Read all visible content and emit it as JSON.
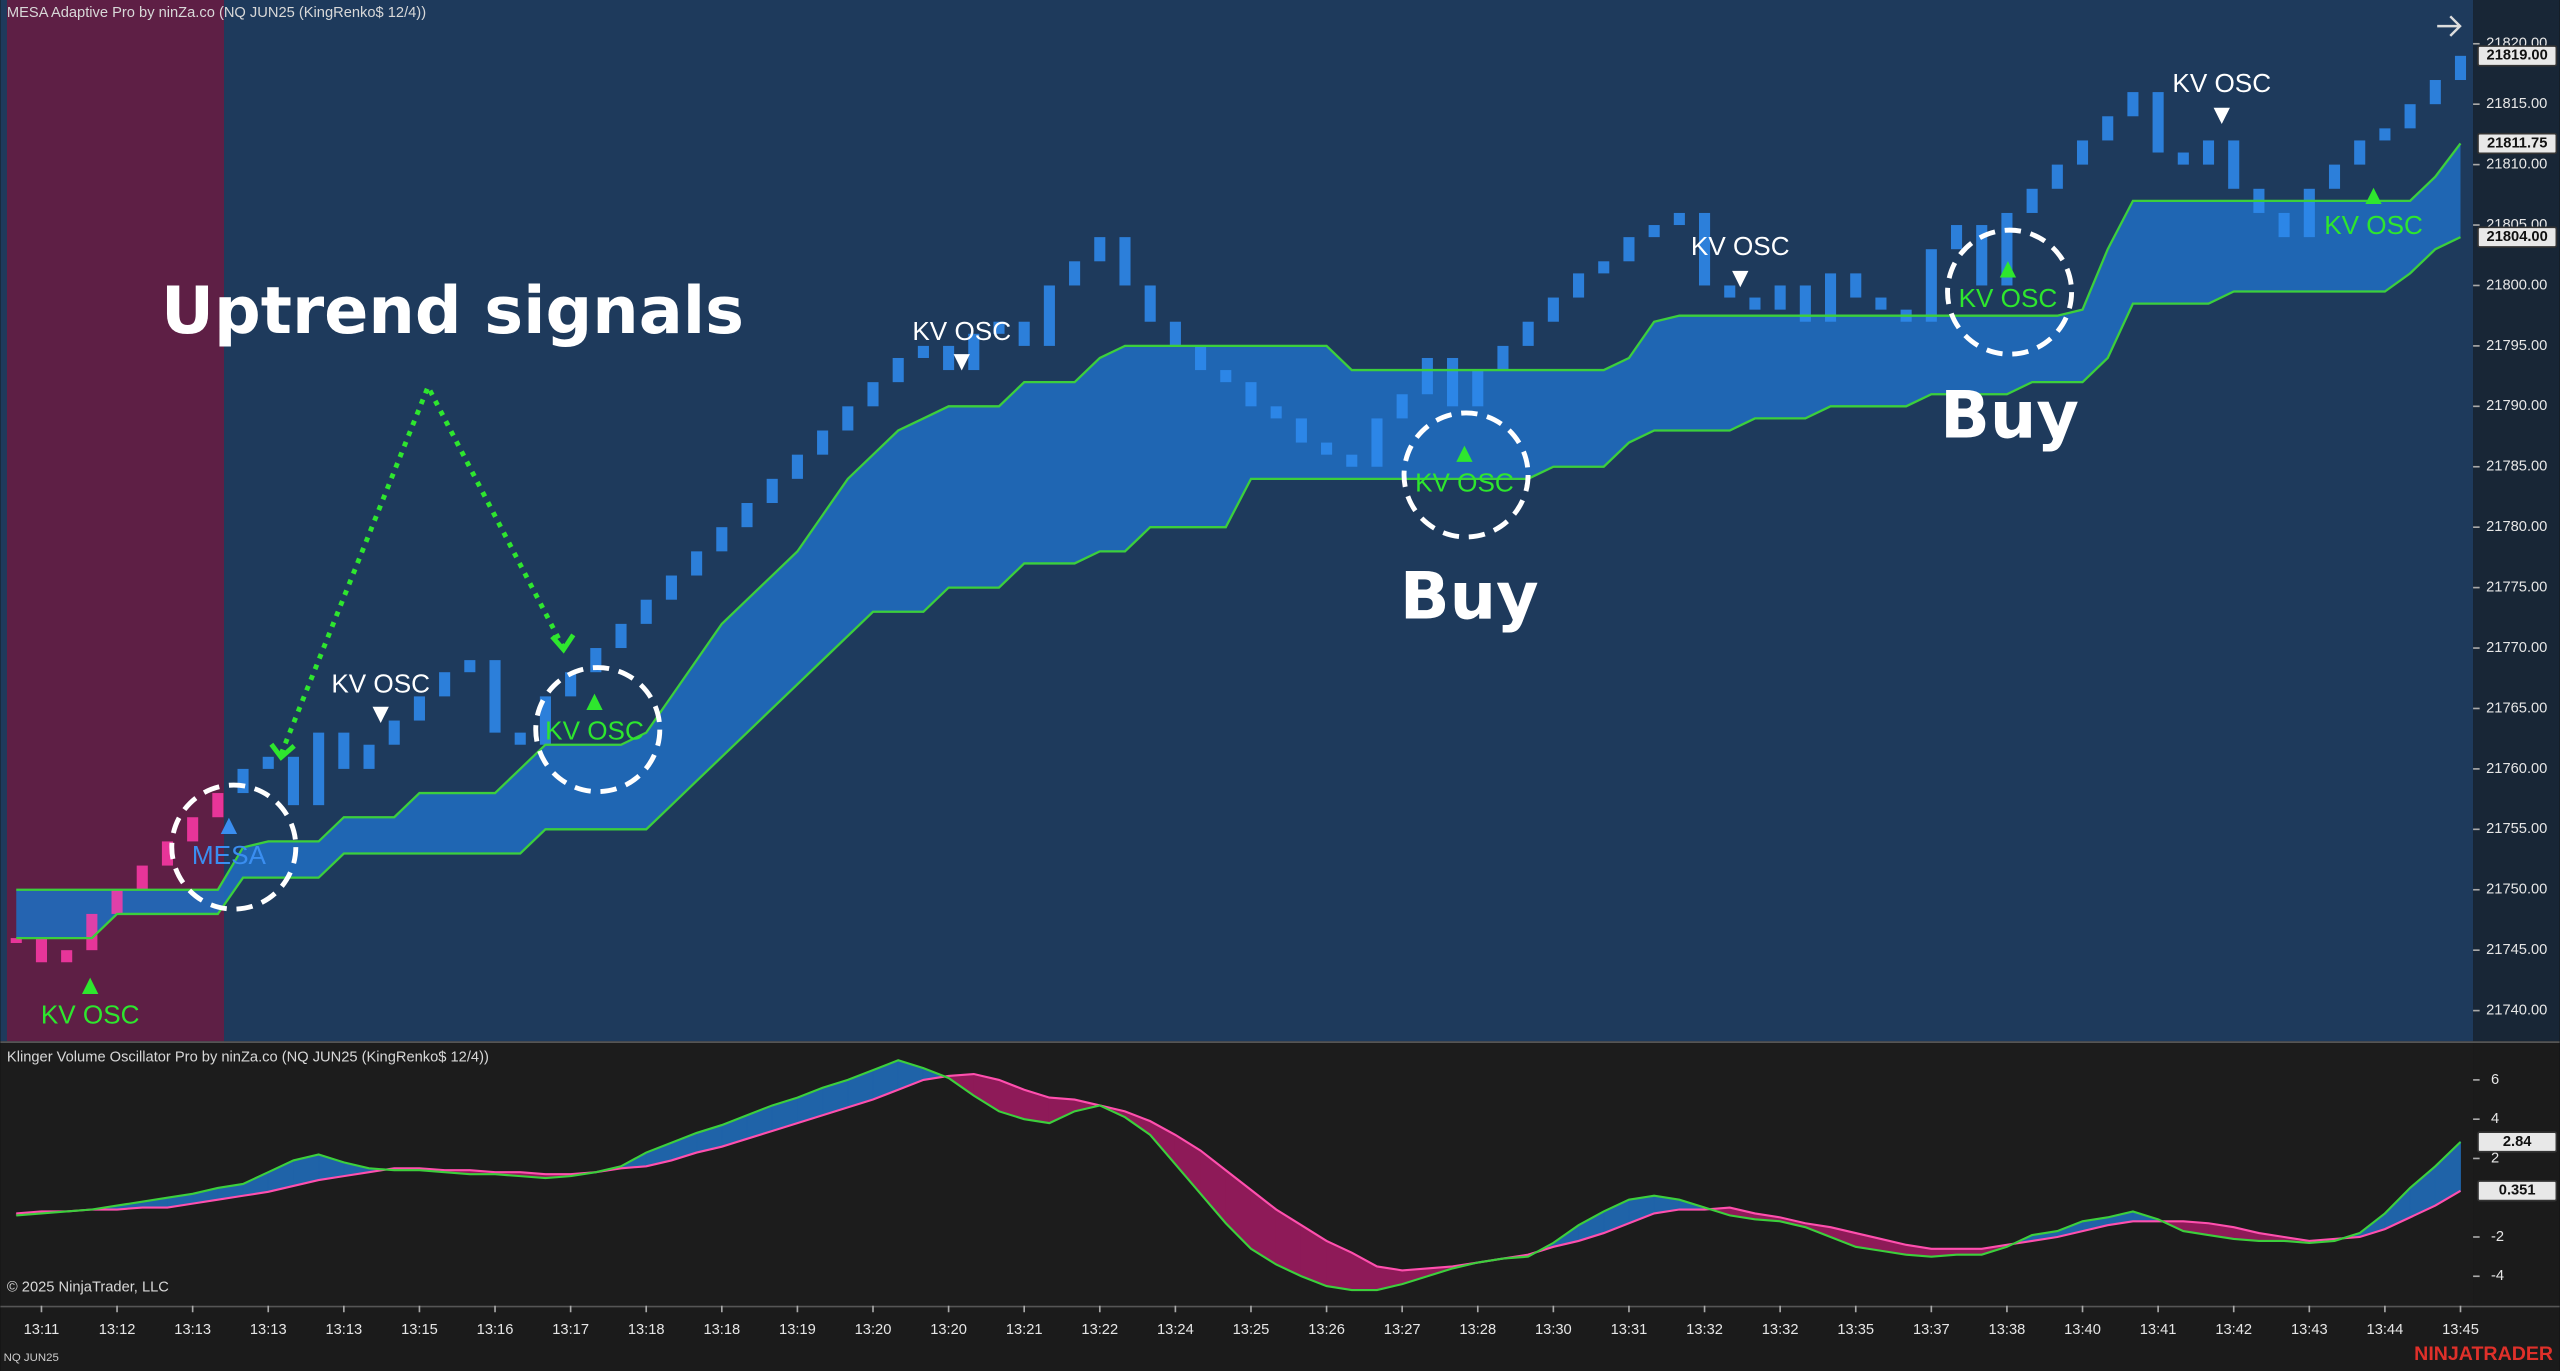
{
  "chart_data": [
    {
      "type": "renko",
      "title": "MESA Adaptive Pro by ninZa.co (NQ JUN25 (KingRenko$ 12/4))",
      "band_color": "#1f6cbd",
      "ylim": [
        21738,
        21822
      ],
      "yticks": [
        {
          "value": 21740,
          "label": "21740.00"
        },
        {
          "value": 21745,
          "label": "21745.00"
        },
        {
          "value": 21750,
          "label": "21750.00"
        },
        {
          "value": 21755,
          "label": "21755.00"
        },
        {
          "value": 21760,
          "label": "21760.00"
        },
        {
          "value": 21765,
          "label": "21765.00"
        },
        {
          "value": 21770,
          "label": "21770.00"
        },
        {
          "value": 21775,
          "label": "21775.00"
        },
        {
          "value": 21780,
          "label": "21780.00"
        },
        {
          "value": 21785,
          "label": "21785.00"
        },
        {
          "value": 21790,
          "label": "21790.00"
        },
        {
          "value": 21795,
          "label": "21795.00"
        },
        {
          "value": 21800,
          "label": "21800.00"
        },
        {
          "value": 21805,
          "label": "21805.00"
        },
        {
          "value": 21810,
          "label": "21810.00"
        },
        {
          "value": 21815,
          "label": "21815.00"
        },
        {
          "value": 21820,
          "label": "21820.00"
        }
      ],
      "series": [
        {
          "type": "renko",
          "color": "#2f8cf0",
          "last_label": "21819.00",
          "values": [
            21746,
            21744,
            21745,
            21748,
            21750,
            21752,
            21754,
            21756,
            21758,
            21760,
            21761,
            21757,
            21763,
            21760,
            21762,
            21764,
            21766,
            21768,
            21769,
            21763,
            21762,
            21766,
            21768,
            21770,
            21772,
            21774,
            21776,
            21778,
            21780,
            21782,
            21784,
            21786,
            21788,
            21790,
            21792,
            21794,
            21795,
            21793,
            21796,
            21797,
            21795,
            21800,
            21802,
            21804,
            21800,
            21797,
            21795,
            21793,
            21792,
            21790,
            21789,
            21787,
            21786,
            21785,
            21789,
            21791,
            21794,
            21790,
            21793,
            21795,
            21797,
            21799,
            21801,
            21802,
            21804,
            21805,
            21806,
            21800,
            21799,
            21798,
            21800,
            21797,
            21801,
            21799,
            21798,
            21797,
            21803,
            21805,
            21800,
            21806,
            21808,
            21810,
            21812,
            21814,
            21816,
            21811,
            21810,
            21812,
            21808,
            21806,
            21804,
            21808,
            21810,
            21812,
            21813,
            21815,
            21817,
            21819
          ]
        },
        {
          "type": "line",
          "color": "#3ccf3c",
          "last_label": "21811.75",
          "values": [
            21750,
            21750,
            21750,
            21750,
            21750,
            21750,
            21750,
            21750,
            21750,
            21753.5,
            21754,
            21754,
            21754,
            21756,
            21756,
            21756,
            21758,
            21758,
            21758,
            21758,
            21760,
            21762,
            21762,
            21762,
            21762,
            21763,
            21766,
            21769,
            21772,
            21774,
            21776,
            21778,
            21781,
            21784,
            21786,
            21788,
            21789,
            21790,
            21790,
            21790,
            21792,
            21792,
            21792,
            21794,
            21795,
            21795,
            21795,
            21795,
            21795,
            21795,
            21795,
            21795,
            21795,
            21793,
            21793,
            21793,
            21793,
            21793,
            21793,
            21793,
            21793,
            21793,
            21793,
            21793,
            21794,
            21797,
            21797.5,
            21797.5,
            21797.5,
            21797.5,
            21797.5,
            21797.5,
            21797.5,
            21797.5,
            21797.5,
            21797.5,
            21797.5,
            21797.5,
            21797.5,
            21797.5,
            21797.5,
            21797.5,
            21798,
            21803,
            21807,
            21807,
            21807,
            21807,
            21807,
            21807,
            21807,
            21807,
            21807,
            21807,
            21807,
            21807,
            21809,
            21811.75
          ]
        },
        {
          "type": "line",
          "color": "#3ccf3c",
          "last_label": "21804.00",
          "values": [
            21746,
            21746,
            21746,
            21746,
            21748,
            21748,
            21748,
            21748,
            21748,
            21751,
            21751,
            21751,
            21751,
            21753,
            21753,
            21753,
            21753,
            21753,
            21753,
            21753,
            21753,
            21755,
            21755,
            21755,
            21755,
            21755,
            21757,
            21759,
            21761,
            21763,
            21765,
            21767,
            21769,
            21771,
            21773,
            21773,
            21773,
            21775,
            21775,
            21775,
            21777,
            21777,
            21777,
            21778,
            21778,
            21780,
            21780,
            21780,
            21780,
            21784,
            21784,
            21784,
            21784,
            21784,
            21784,
            21784,
            21784,
            21784,
            21784,
            21784,
            21784,
            21785,
            21785,
            21785,
            21787,
            21788,
            21788,
            21788,
            21788,
            21789,
            21789,
            21789,
            21790,
            21790,
            21790,
            21790,
            21791,
            21791,
            21791,
            21791,
            21792,
            21792,
            21792,
            21794,
            21798.5,
            21798.5,
            21798.5,
            21798.5,
            21799.5,
            21799.5,
            21799.5,
            21799.5,
            21799.5,
            21799.5,
            21799.5,
            21801,
            21803,
            21804
          ]
        }
      ],
      "annotations": [
        "Uptrend signals",
        "Buy",
        "Buy",
        "KV OSC",
        "KV OSC",
        "MESA",
        "KV OSC",
        "KV OSC",
        "KV OSC",
        "KV OSC",
        "KV OSC",
        "KV OSC",
        "KV OSC"
      ]
    },
    {
      "type": "line",
      "title": "Klinger Volume Oscillator Pro by ninZa.co (NQ JUN25 (KingRenko$ 12/4))",
      "up_fill": "#1f63a8",
      "down_fill": "#8e1a58",
      "ylim": [
        -5.5,
        7.8
      ],
      "yticks": [
        -4,
        -2,
        2,
        4,
        6
      ],
      "categories": [
        null,
        "13:11",
        null,
        null,
        "13:12",
        null,
        null,
        "13:13",
        null,
        null,
        "13:13",
        null,
        null,
        "13:13",
        null,
        null,
        "13:15",
        null,
        null,
        "13:16",
        null,
        null,
        "13:17",
        null,
        null,
        "13:18",
        null,
        null,
        "13:18",
        null,
        null,
        "13:19",
        null,
        null,
        "13:20",
        null,
        null,
        "13:20",
        null,
        null,
        "13:21",
        null,
        null,
        "13:22",
        null,
        null,
        "13:24",
        null,
        null,
        "13:25",
        null,
        null,
        "13:26",
        null,
        null,
        "13:27",
        null,
        null,
        "13:28",
        null,
        null,
        "13:30",
        null,
        null,
        "13:31",
        null,
        null,
        "13:32",
        null,
        null,
        "13:32",
        null,
        null,
        "13:35",
        null,
        null,
        "13:37",
        null,
        null,
        "13:38",
        null,
        null,
        "13:40",
        null,
        null,
        "13:41",
        null,
        null,
        "13:42",
        null,
        null,
        "13:43",
        null,
        null,
        "13:44",
        null,
        null,
        "13:45"
      ],
      "series": [
        {
          "color": "#3ccf3c",
          "last_label": "2.84",
          "values": [
            -0.9,
            -0.8,
            -0.7,
            -0.6,
            -0.4,
            -0.2,
            0,
            0.2,
            0.5,
            0.7,
            1.3,
            1.9,
            2.2,
            1.8,
            1.5,
            1.4,
            1.4,
            1.3,
            1.2,
            1.2,
            1.1,
            1.0,
            1.1,
            1.3,
            1.6,
            2.3,
            2.8,
            3.3,
            3.7,
            4.2,
            4.7,
            5.1,
            5.6,
            6.0,
            6.5,
            7.0,
            6.6,
            6.1,
            5.2,
            4.4,
            4.0,
            3.8,
            4.4,
            4.7,
            4.1,
            3.2,
            1.7,
            0.2,
            -1.3,
            -2.6,
            -3.4,
            -4.0,
            -4.5,
            -4.7,
            -4.7,
            -4.4,
            -4.0,
            -3.6,
            -3.3,
            -3.1,
            -3.0,
            -2.3,
            -1.4,
            -0.7,
            -0.1,
            0.1,
            -0.1,
            -0.5,
            -0.9,
            -1.1,
            -1.2,
            -1.5,
            -2.0,
            -2.5,
            -2.7,
            -2.9,
            -3.0,
            -2.9,
            -2.9,
            -2.5,
            -1.9,
            -1.7,
            -1.2,
            -1.0,
            -0.7,
            -1.1,
            -1.7,
            -1.9,
            -2.1,
            -2.2,
            -2.2,
            -2.3,
            -2.2,
            -1.8,
            -0.8,
            0.5,
            1.6,
            2.84
          ]
        },
        {
          "color": "#ff4fae",
          "last_label": "0.351",
          "values": [
            -0.8,
            -0.7,
            -0.7,
            -0.6,
            -0.6,
            -0.5,
            -0.5,
            -0.3,
            -0.1,
            0.1,
            0.3,
            0.6,
            0.9,
            1.1,
            1.3,
            1.5,
            1.5,
            1.4,
            1.4,
            1.3,
            1.3,
            1.2,
            1.2,
            1.3,
            1.5,
            1.6,
            1.9,
            2.3,
            2.6,
            3.0,
            3.4,
            3.8,
            4.2,
            4.6,
            5.0,
            5.5,
            6.0,
            6.2,
            6.3,
            6.0,
            5.5,
            5.1,
            5.0,
            4.7,
            4.4,
            3.9,
            3.2,
            2.4,
            1.4,
            0.4,
            -0.6,
            -1.4,
            -2.2,
            -2.8,
            -3.5,
            -3.7,
            -3.6,
            -3.5,
            -3.3,
            -3.1,
            -2.9,
            -2.5,
            -2.2,
            -1.8,
            -1.3,
            -0.8,
            -0.6,
            -0.6,
            -0.5,
            -0.8,
            -1.0,
            -1.3,
            -1.5,
            -1.8,
            -2.1,
            -2.4,
            -2.6,
            -2.6,
            -2.6,
            -2.4,
            -2.2,
            -2.0,
            -1.7,
            -1.4,
            -1.2,
            -1.2,
            -1.2,
            -1.3,
            -1.5,
            -1.8,
            -2.0,
            -2.2,
            -2.1,
            -2.0,
            -1.6,
            -1.0,
            -0.4,
            0.351
          ]
        }
      ]
    }
  ],
  "copyright": "© 2025 NinjaTrader, LLC",
  "instrument": "NQ JUN25",
  "brand": "NINJATRADER"
}
